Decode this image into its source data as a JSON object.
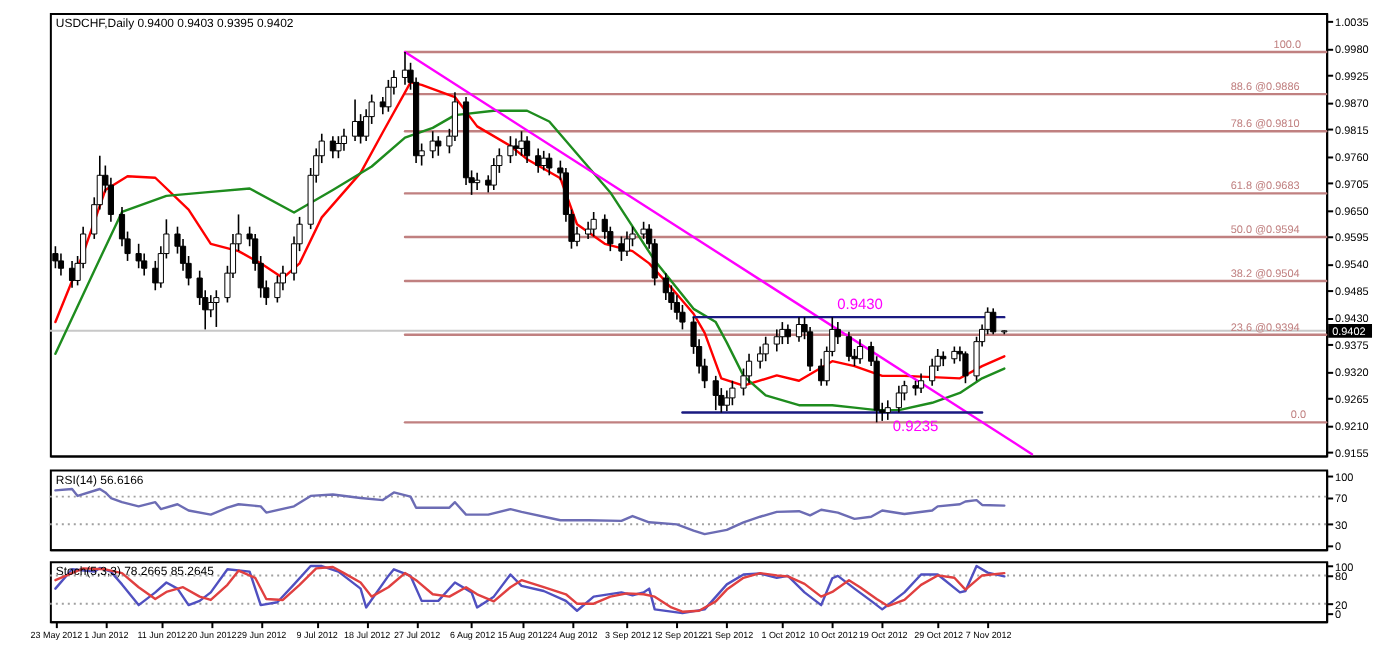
{
  "chart_data": [
    {
      "type": "candlestick",
      "title": "USDCHF,Daily 0.9400 0.9403 0.9395 0.9402",
      "x": [
        "2012-05-23",
        "2012-05-24",
        "2012-05-26",
        "2012-05-27",
        "2012-05-28",
        "2012-05-30",
        "2012-05-31",
        "2012-06-01",
        "2012-06-02",
        "2012-06-04",
        "2012-06-05",
        "2012-06-07",
        "2012-06-08",
        "2012-06-10",
        "2012-06-11",
        "2012-06-12",
        "2012-06-14",
        "2012-06-15",
        "2012-06-16",
        "2012-06-18",
        "2012-06-19",
        "2012-06-20",
        "2012-06-21",
        "2012-06-23",
        "2012-06-24",
        "2012-06-25",
        "2012-06-27",
        "2012-06-28",
        "2012-06-29",
        "2012-06-30",
        "2012-07-02",
        "2012-07-03",
        "2012-07-05",
        "2012-07-06",
        "2012-07-08",
        "2012-07-09",
        "2012-07-10",
        "2012-07-12",
        "2012-07-13",
        "2012-07-14",
        "2012-07-16",
        "2012-07-17",
        "2012-07-18",
        "2012-07-19",
        "2012-07-21",
        "2012-07-22",
        "2012-07-23",
        "2012-07-25",
        "2012-07-26",
        "2012-07-27",
        "2012-07-28",
        "2012-07-30",
        "2012-07-31",
        "2012-08-02",
        "2012-08-03",
        "2012-08-05",
        "2012-08-06",
        "2012-08-07",
        "2012-08-09",
        "2012-08-10",
        "2012-08-11",
        "2012-08-13",
        "2012-08-14",
        "2012-08-15",
        "2012-08-16",
        "2012-08-18",
        "2012-08-19",
        "2012-08-20",
        "2012-08-22",
        "2012-08-23",
        "2012-08-24",
        "2012-08-25",
        "2012-08-27",
        "2012-08-28",
        "2012-08-30",
        "2012-08-31",
        "2012-09-02",
        "2012-09-03",
        "2012-09-04",
        "2012-09-06",
        "2012-09-07",
        "2012-09-08",
        "2012-09-10",
        "2012-09-11",
        "2012-09-12",
        "2012-09-13",
        "2012-09-15",
        "2012-09-16",
        "2012-09-17",
        "2012-09-19",
        "2012-09-20",
        "2012-09-21",
        "2012-09-22",
        "2012-09-24",
        "2012-09-25",
        "2012-09-27",
        "2012-09-28",
        "2012-09-30",
        "2012-10-01",
        "2012-10-02",
        "2012-10-04",
        "2012-10-05",
        "2012-10-06",
        "2012-10-08",
        "2012-10-09",
        "2012-10-10",
        "2012-10-11",
        "2012-10-13",
        "2012-10-14",
        "2012-10-15",
        "2012-10-17",
        "2012-10-18",
        "2012-10-19",
        "2012-10-20",
        "2012-10-22",
        "2012-10-23",
        "2012-10-25",
        "2012-10-26",
        "2012-10-28",
        "2012-10-29",
        "2012-10-30",
        "2012-11-01",
        "2012-11-02",
        "2012-11-03",
        "2012-11-05",
        "2012-11-06",
        "2012-11-07",
        "2012-11-08",
        "2012-11-10"
      ],
      "ohlc": [
        [
          0.956,
          0.9575,
          0.953,
          0.9545
        ],
        [
          0.9545,
          0.956,
          0.9515,
          0.953
        ],
        [
          0.953,
          0.9545,
          0.949,
          0.9505
        ],
        [
          0.9505,
          0.9555,
          0.9495,
          0.954
        ],
        [
          0.954,
          0.9615,
          0.953,
          0.96
        ],
        [
          0.96,
          0.9675,
          0.959,
          0.966
        ],
        [
          0.966,
          0.976,
          0.965,
          0.972
        ],
        [
          0.972,
          0.974,
          0.9685,
          0.97
        ],
        [
          0.97,
          0.9715,
          0.9625,
          0.964
        ],
        [
          0.964,
          0.9655,
          0.9575,
          0.959
        ],
        [
          0.959,
          0.9605,
          0.9545,
          0.956
        ],
        [
          0.956,
          0.958,
          0.953,
          0.9545
        ],
        [
          0.9545,
          0.956,
          0.9515,
          0.953
        ],
        [
          0.953,
          0.9545,
          0.9485,
          0.95
        ],
        [
          0.95,
          0.9575,
          0.949,
          0.956
        ],
        [
          0.956,
          0.963,
          0.955,
          0.96
        ],
        [
          0.96,
          0.9615,
          0.956,
          0.9575
        ],
        [
          0.9575,
          0.959,
          0.9525,
          0.954
        ],
        [
          0.954,
          0.9555,
          0.9495,
          0.951
        ],
        [
          0.951,
          0.9525,
          0.9455,
          0.947
        ],
        [
          0.947,
          0.9485,
          0.9405,
          0.9445
        ],
        [
          0.9445,
          0.9475,
          0.943,
          0.946
        ],
        [
          0.946,
          0.9485,
          0.941,
          0.947
        ],
        [
          0.947,
          0.9535,
          0.946,
          0.952
        ],
        [
          0.952,
          0.96,
          0.951,
          0.958
        ],
        [
          0.958,
          0.964,
          0.9565,
          0.96
        ],
        [
          0.96,
          0.9615,
          0.9575,
          0.959
        ],
        [
          0.959,
          0.96,
          0.9525,
          0.954
        ],
        [
          0.954,
          0.9555,
          0.947,
          0.949
        ],
        [
          0.949,
          0.9505,
          0.9455,
          0.947
        ],
        [
          0.947,
          0.9515,
          0.946,
          0.95
        ],
        [
          0.95,
          0.9535,
          0.9485,
          0.952
        ],
        [
          0.952,
          0.9595,
          0.9505,
          0.958
        ],
        [
          0.958,
          0.9635,
          0.9565,
          0.962
        ],
        [
          0.962,
          0.9735,
          0.961,
          0.972
        ],
        [
          0.972,
          0.9775,
          0.9705,
          0.976
        ],
        [
          0.976,
          0.9805,
          0.9745,
          0.979
        ],
        [
          0.979,
          0.98,
          0.9755,
          0.977
        ],
        [
          0.977,
          0.98,
          0.9755,
          0.9785
        ],
        [
          0.9785,
          0.9815,
          0.977,
          0.98
        ],
        [
          0.98,
          0.9875,
          0.979,
          0.983
        ],
        [
          0.983,
          0.9845,
          0.9785,
          0.98
        ],
        [
          0.98,
          0.9855,
          0.979,
          0.984
        ],
        [
          0.984,
          0.9885,
          0.9825,
          0.987
        ],
        [
          0.987,
          0.988,
          0.9845,
          0.986
        ],
        [
          0.986,
          0.9915,
          0.985,
          0.99
        ],
        [
          0.99,
          0.9935,
          0.9885,
          0.992
        ],
        [
          0.992,
          0.9972,
          0.9905,
          0.9935
        ],
        [
          0.9935,
          0.995,
          0.9895,
          0.991
        ],
        [
          0.991,
          0.992,
          0.9745,
          0.976
        ],
        [
          0.976,
          0.9785,
          0.974,
          0.977
        ],
        [
          0.977,
          0.981,
          0.9755,
          0.979
        ],
        [
          0.979,
          0.98,
          0.976,
          0.978
        ],
        [
          0.978,
          0.9815,
          0.9765,
          0.98
        ],
        [
          0.98,
          0.989,
          0.979,
          0.987
        ],
        [
          0.987,
          0.988,
          0.97,
          0.9715
        ],
        [
          0.9715,
          0.973,
          0.968,
          0.9705
        ],
        [
          0.9705,
          0.9725,
          0.969,
          0.971
        ],
        [
          0.971,
          0.972,
          0.9685,
          0.97
        ],
        [
          0.97,
          0.9755,
          0.969,
          0.974
        ],
        [
          0.974,
          0.9775,
          0.9725,
          0.976
        ],
        [
          0.976,
          0.98,
          0.9745,
          0.978
        ],
        [
          0.978,
          0.9795,
          0.976,
          0.9775
        ],
        [
          0.9775,
          0.981,
          0.976,
          0.979
        ],
        [
          0.979,
          0.98,
          0.9745,
          0.976
        ],
        [
          0.976,
          0.9775,
          0.9725,
          0.974
        ],
        [
          0.974,
          0.977,
          0.973,
          0.9755
        ],
        [
          0.9755,
          0.9765,
          0.972,
          0.9735
        ],
        [
          0.9735,
          0.975,
          0.971,
          0.9725
        ],
        [
          0.9725,
          0.9735,
          0.9625,
          0.964
        ],
        [
          0.964,
          0.965,
          0.957,
          0.9585
        ],
        [
          0.9585,
          0.9615,
          0.9575,
          0.96
        ],
        [
          0.96,
          0.9625,
          0.959,
          0.961
        ],
        [
          0.961,
          0.9645,
          0.9595,
          0.963
        ],
        [
          0.963,
          0.964,
          0.959,
          0.9605
        ],
        [
          0.9605,
          0.9615,
          0.9565,
          0.958
        ],
        [
          0.958,
          0.9595,
          0.9545,
          0.9565
        ],
        [
          0.9565,
          0.9605,
          0.9555,
          0.959
        ],
        [
          0.959,
          0.9615,
          0.9575,
          0.96
        ],
        [
          0.96,
          0.9625,
          0.959,
          0.961
        ],
        [
          0.961,
          0.962,
          0.957,
          0.958
        ],
        [
          0.958,
          0.959,
          0.9495,
          0.951
        ],
        [
          0.951,
          0.952,
          0.9465,
          0.948
        ],
        [
          0.948,
          0.9495,
          0.9445,
          0.946
        ],
        [
          0.946,
          0.9475,
          0.9425,
          0.944
        ],
        [
          0.944,
          0.9455,
          0.9405,
          0.942
        ],
        [
          0.942,
          0.943,
          0.9355,
          0.937
        ],
        [
          0.937,
          0.9385,
          0.9315,
          0.933
        ],
        [
          0.933,
          0.9345,
          0.9285,
          0.93
        ],
        [
          0.93,
          0.931,
          0.924,
          0.927
        ],
        [
          0.927,
          0.9285,
          0.9235,
          0.925
        ],
        [
          0.925,
          0.928,
          0.9238,
          0.9265
        ],
        [
          0.9265,
          0.93,
          0.925,
          0.9285
        ],
        [
          0.9285,
          0.9325,
          0.927,
          0.931
        ],
        [
          0.931,
          0.9355,
          0.9295,
          0.934
        ],
        [
          0.934,
          0.937,
          0.9325,
          0.9355
        ],
        [
          0.9355,
          0.939,
          0.934,
          0.9375
        ],
        [
          0.9375,
          0.9405,
          0.936,
          0.939
        ],
        [
          0.939,
          0.942,
          0.9375,
          0.9405
        ],
        [
          0.9405,
          0.9415,
          0.9375,
          0.939
        ],
        [
          0.939,
          0.943,
          0.938,
          0.9415
        ],
        [
          0.9415,
          0.943,
          0.9385,
          0.94
        ],
        [
          0.94,
          0.941,
          0.932,
          0.933
        ],
        [
          0.933,
          0.9345,
          0.929,
          0.93
        ],
        [
          0.93,
          0.937,
          0.929,
          0.936
        ],
        [
          0.936,
          0.943,
          0.935,
          0.9405
        ],
        [
          0.9405,
          0.942,
          0.9375,
          0.939
        ],
        [
          0.939,
          0.94,
          0.934,
          0.935
        ],
        [
          0.935,
          0.9365,
          0.933,
          0.9345
        ],
        [
          0.9345,
          0.9385,
          0.9335,
          0.937
        ],
        [
          0.937,
          0.938,
          0.933,
          0.934
        ],
        [
          0.934,
          0.935,
          0.9215,
          0.924
        ],
        [
          0.924,
          0.9255,
          0.9218,
          0.9235
        ],
        [
          0.9235,
          0.926,
          0.922,
          0.9245
        ],
        [
          0.9245,
          0.929,
          0.9235,
          0.9275
        ],
        [
          0.9275,
          0.93,
          0.926,
          0.929
        ],
        [
          0.929,
          0.93,
          0.927,
          0.9285
        ],
        [
          0.9285,
          0.9315,
          0.9275,
          0.93
        ],
        [
          0.93,
          0.9345,
          0.929,
          0.933
        ],
        [
          0.933,
          0.9365,
          0.932,
          0.935
        ],
        [
          0.935,
          0.936,
          0.933,
          0.9345
        ],
        [
          0.9345,
          0.937,
          0.9335,
          0.936
        ],
        [
          0.936,
          0.937,
          0.934,
          0.9355
        ],
        [
          0.9355,
          0.936,
          0.9295,
          0.931
        ],
        [
          0.931,
          0.939,
          0.93,
          0.938
        ],
        [
          0.938,
          0.9415,
          0.937,
          0.9405
        ],
        [
          0.9405,
          0.945,
          0.9395,
          0.944
        ],
        [
          0.944,
          0.9448,
          0.9395,
          0.94
        ],
        [
          0.94,
          0.9403,
          0.9395,
          0.9402
        ]
      ],
      "series": [
        {
          "type": "line",
          "color": "#c08080",
          "x": [
            "2012-07-25",
            "2013-01-07"
          ],
          "values": [
            0.9972,
            0.9972
          ]
        },
        {
          "type": "line",
          "color": "#c08080",
          "x": [
            "2012-07-25",
            "2013-01-07"
          ],
          "values": [
            0.9886,
            0.9886
          ]
        },
        {
          "type": "line",
          "color": "#c08080",
          "x": [
            "2012-07-25",
            "2013-01-07"
          ],
          "values": [
            0.981,
            0.981
          ]
        },
        {
          "type": "line",
          "color": "#c08080",
          "x": [
            "2012-07-25",
            "2013-01-07"
          ],
          "values": [
            0.9683,
            0.9683
          ]
        },
        {
          "type": "line",
          "color": "#c08080",
          "x": [
            "2012-07-25",
            "2013-01-07"
          ],
          "values": [
            0.9594,
            0.9594
          ]
        },
        {
          "type": "line",
          "color": "#c08080",
          "x": [
            "2012-07-25",
            "2013-01-07"
          ],
          "values": [
            0.9504,
            0.9504
          ]
        },
        {
          "type": "line",
          "color": "#c08080",
          "x": [
            "2012-07-25",
            "2013-01-07"
          ],
          "values": [
            0.9394,
            0.9394
          ]
        },
        {
          "type": "line",
          "color": "#c08080",
          "x": [
            "2012-07-25",
            "2013-01-07"
          ],
          "values": [
            0.9215,
            0.9215
          ]
        },
        {
          "type": "line",
          "color": "#ff0000",
          "x": [
            "2012-05-23",
            "2012-05-28",
            "2012-06-01",
            "2012-06-05",
            "2012-06-10",
            "2012-06-16",
            "2012-06-20",
            "2012-06-25",
            "2012-06-29",
            "2012-07-03",
            "2012-07-06",
            "2012-07-10",
            "2012-07-17",
            "2012-07-21",
            "2012-07-26",
            "2012-07-28",
            "2012-08-03",
            "2012-08-07",
            "2012-08-13",
            "2012-08-16",
            "2012-08-22",
            "2012-08-25",
            "2012-08-30",
            "2012-09-04",
            "2012-09-07",
            "2012-09-11",
            "2012-09-15",
            "2012-09-17",
            "2012-09-20",
            "2012-09-24",
            "2012-09-30",
            "2012-10-04",
            "2012-10-10",
            "2012-10-14",
            "2012-10-19",
            "2012-10-23",
            "2012-10-29",
            "2012-11-02",
            "2012-11-06",
            "2012-11-10"
          ],
          "values": [
            0.942,
            0.956,
            0.969,
            0.9718,
            0.9715,
            0.965,
            0.958,
            0.9565,
            0.954,
            0.951,
            0.954,
            0.9634,
            0.9725,
            0.9808,
            0.991,
            0.9905,
            0.988,
            0.982,
            0.978,
            0.9753,
            0.9714,
            0.962,
            0.958,
            0.9565,
            0.954,
            0.949,
            0.9437,
            0.9398,
            0.9305,
            0.929,
            0.9311,
            0.93,
            0.934,
            0.933,
            0.931,
            0.931,
            0.9307,
            0.9305,
            0.933,
            0.935
          ]
        },
        {
          "type": "line",
          "color": "#1e8c1e",
          "x": [
            "2012-05-23",
            "2012-05-30",
            "2012-06-04",
            "2012-06-12",
            "2012-06-19",
            "2012-06-27",
            "2012-07-05",
            "2012-07-12",
            "2012-07-19",
            "2012-07-25",
            "2012-07-30",
            "2012-08-03",
            "2012-08-10",
            "2012-08-16",
            "2012-08-20",
            "2012-08-31",
            "2012-09-08",
            "2012-09-15",
            "2012-09-19",
            "2012-09-21",
            "2012-09-24",
            "2012-09-28",
            "2012-10-04",
            "2012-10-10",
            "2012-10-14",
            "2012-10-18",
            "2012-10-22",
            "2012-10-28",
            "2012-11-02",
            "2012-11-06",
            "2012-11-10"
          ],
          "values": [
            0.9355,
            0.9525,
            0.9645,
            0.9678,
            0.9685,
            0.9693,
            0.9644,
            0.969,
            0.9738,
            0.9797,
            0.9817,
            0.9843,
            0.9852,
            0.9852,
            0.983,
            0.9685,
            0.9546,
            0.9447,
            0.942,
            0.9378,
            0.931,
            0.927,
            0.925,
            0.925,
            0.9245,
            0.924,
            0.924,
            0.9255,
            0.9275,
            0.9305,
            0.9325
          ]
        },
        {
          "type": "line",
          "color": "#ff00ff",
          "x": [
            "2012-07-25",
            "2012-11-15"
          ],
          "values": [
            0.9972,
            0.915
          ]
        },
        {
          "type": "line",
          "color": "#1a1a80",
          "x": [
            "2012-09-15",
            "2012-11-10"
          ],
          "values": [
            0.943,
            0.943
          ]
        },
        {
          "type": "line",
          "color": "#1a1a80",
          "x": [
            "2012-09-13",
            "2012-11-06"
          ],
          "values": [
            0.9235,
            0.9235
          ]
        }
      ],
      "ref_lines": [
        {
          "axis": "y",
          "value": 0.9402,
          "label": "0.9402",
          "color": "#c8c8c8"
        }
      ],
      "annotations": [
        {
          "text": "100.0",
          "x": "2012-12-31",
          "y": 0.9972
        },
        {
          "text": "88.6 @0.9886",
          "x": "2012-12-27",
          "y": 0.9886
        },
        {
          "text": "78.6 @0.9810",
          "x": "2012-12-27",
          "y": 0.981
        },
        {
          "text": "61.8 @0.9683",
          "x": "2012-12-27",
          "y": 0.9683
        },
        {
          "text": "50.0 @0.9594",
          "x": "2012-12-27",
          "y": 0.9594
        },
        {
          "text": "38.2 @0.9504",
          "x": "2012-12-27",
          "y": 0.9504
        },
        {
          "text": "23.6 @0.9394",
          "x": "2012-12-27",
          "y": 0.9394
        },
        {
          "text": "0.0",
          "x": "2013-01-02",
          "y": 0.9215
        },
        {
          "text": "0.9430",
          "x": "2012-10-15",
          "y": 0.943
        },
        {
          "text": "0.9235",
          "x": "2012-10-25",
          "y": 0.9235
        }
      ],
      "xlim": [
        "2012-05-22",
        "2013-01-07"
      ],
      "ylim": [
        0.9147,
        1.0052
      ],
      "yticks": [
        0.9155,
        {
          "value": 0.921,
          "label": "0.9210"
        },
        0.9265,
        {
          "value": 0.932,
          "label": "0.9320"
        },
        0.9375,
        {
          "value": 0.943,
          "label": "0.9430"
        },
        0.9485,
        {
          "value": 0.954,
          "label": "0.9540"
        },
        0.9595,
        {
          "value": 0.965,
          "label": "0.9650"
        },
        0.9705,
        {
          "value": 0.976,
          "label": "0.9760"
        },
        0.9815,
        {
          "value": 0.987,
          "label": "0.9870"
        },
        0.9925,
        {
          "value": 0.998,
          "label": "0.9980"
        },
        1.0035
      ],
      "tick_labels": "y"
    },
    {
      "type": "line",
      "title": "RSI(14) 56.6166",
      "series": [
        {
          "color": "#6c6cb4",
          "x": [
            "2012-05-23",
            "2012-05-26",
            "2012-05-27",
            "2012-05-31",
            "2012-06-01",
            "2012-06-02",
            "2012-06-04",
            "2012-06-07",
            "2012-06-10",
            "2012-06-11",
            "2012-06-14",
            "2012-06-16",
            "2012-06-20",
            "2012-06-23",
            "2012-06-25",
            "2012-06-29",
            "2012-06-30",
            "2012-07-05",
            "2012-07-08",
            "2012-07-12",
            "2012-07-17",
            "2012-07-21",
            "2012-07-23",
            "2012-07-26",
            "2012-07-27",
            "2012-08-02",
            "2012-08-03",
            "2012-08-05",
            "2012-08-09",
            "2012-08-13",
            "2012-08-15",
            "2012-08-22",
            "2012-08-27",
            "2012-09-02",
            "2012-09-04",
            "2012-09-07",
            "2012-09-12",
            "2012-09-15",
            "2012-09-17",
            "2012-09-21",
            "2012-09-24",
            "2012-09-27",
            "2012-09-30",
            "2012-10-04",
            "2012-10-06",
            "2012-10-08",
            "2012-10-11",
            "2012-10-14",
            "2012-10-17",
            "2012-10-19",
            "2012-10-23",
            "2012-10-28",
            "2012-10-29",
            "2012-11-02",
            "2012-11-03",
            "2012-11-05",
            "2012-11-06",
            "2012-11-10"
          ],
          "values": [
            79,
            81,
            71,
            81,
            76,
            68,
            62,
            56,
            62,
            52,
            59,
            50,
            44,
            54,
            59,
            56,
            47,
            56,
            71,
            73,
            68,
            65,
            76,
            70,
            54,
            54,
            62,
            44,
            44,
            52,
            48,
            36,
            36,
            35,
            42,
            33,
            30,
            21,
            16,
            22,
            33,
            41,
            48,
            49,
            43,
            51,
            47,
            38,
            41,
            50,
            45,
            50,
            56,
            59,
            63,
            65,
            58,
            57
          ]
        }
      ],
      "ref_lines": [
        {
          "axis": "y",
          "value": 70,
          "color": "#a0a0a0",
          "line_style": "dotted"
        },
        {
          "axis": "y",
          "value": 30,
          "color": "#a0a0a0",
          "line_style": "dotted"
        }
      ],
      "xlim": [
        "2012-05-22",
        "2013-01-07"
      ],
      "ylim": [
        -6,
        109
      ],
      "yticks": [
        0,
        30,
        70,
        100
      ],
      "tick_labels": "y"
    },
    {
      "type": "line",
      "title": "Stoch(5,3,3) 78.2665 85.2645",
      "series": [
        {
          "color": "#5050c0",
          "x": [
            "2012-05-23",
            "2012-05-26",
            "2012-05-30",
            "2012-05-31",
            "2012-06-02",
            "2012-06-04",
            "2012-06-07",
            "2012-06-10",
            "2012-06-12",
            "2012-06-14",
            "2012-06-16",
            "2012-06-18",
            "2012-06-20",
            "2012-06-23",
            "2012-06-27",
            "2012-06-29",
            "2012-07-02",
            "2012-07-05",
            "2012-07-08",
            "2012-07-10",
            "2012-07-13",
            "2012-07-17",
            "2012-07-18",
            "2012-07-22",
            "2012-07-23",
            "2012-07-26",
            "2012-07-28",
            "2012-07-31",
            "2012-08-03",
            "2012-08-06",
            "2012-08-07",
            "2012-08-10",
            "2012-08-13",
            "2012-08-15",
            "2012-08-19",
            "2012-08-23",
            "2012-08-25",
            "2012-08-28",
            "2012-09-02",
            "2012-09-04",
            "2012-09-06",
            "2012-09-07",
            "2012-09-08",
            "2012-09-13",
            "2012-09-17",
            "2012-09-21",
            "2012-09-24",
            "2012-09-27",
            "2012-09-30",
            "2012-10-02",
            "2012-10-05",
            "2012-10-08",
            "2012-10-10",
            "2012-10-11",
            "2012-10-14",
            "2012-10-17",
            "2012-10-19",
            "2012-10-23",
            "2012-10-26",
            "2012-10-29",
            "2012-11-02",
            "2012-11-03",
            "2012-11-05",
            "2012-11-07",
            "2012-11-10"
          ],
          "values": [
            52,
            93,
            88,
            96,
            88,
            61,
            17,
            44,
            65,
            52,
            17,
            26,
            44,
            93,
            88,
            17,
            23,
            61,
            100,
            100,
            88,
            52,
            12,
            79,
            93,
            79,
            26,
            26,
            65,
            44,
            12,
            35,
            82,
            58,
            47,
            26,
            5,
            35,
            44,
            38,
            44,
            52,
            8,
            0,
            8,
            61,
            82,
            84,
            75,
            79,
            44,
            17,
            74,
            79,
            52,
            26,
            8,
            44,
            82,
            82,
            44,
            47,
            100,
            86,
            78
          ]
        },
        {
          "color": "#e04040",
          "x": [
            "2012-05-23",
            "2012-05-26",
            "2012-05-28",
            "2012-06-01",
            "2012-06-04",
            "2012-06-07",
            "2012-06-10",
            "2012-06-12",
            "2012-06-15",
            "2012-06-18",
            "2012-06-20",
            "2012-06-23",
            "2012-06-25",
            "2012-06-28",
            "2012-06-30",
            "2012-07-03",
            "2012-07-06",
            "2012-07-09",
            "2012-07-12",
            "2012-07-14",
            "2012-07-17",
            "2012-07-19",
            "2012-07-22",
            "2012-07-25",
            "2012-07-27",
            "2012-07-30",
            "2012-08-02",
            "2012-08-05",
            "2012-08-07",
            "2012-08-10",
            "2012-08-13",
            "2012-08-15",
            "2012-08-19",
            "2012-08-23",
            "2012-08-25",
            "2012-08-28",
            "2012-08-31",
            "2012-09-03",
            "2012-09-06",
            "2012-09-08",
            "2012-09-11",
            "2012-09-13",
            "2012-09-16",
            "2012-09-19",
            "2012-09-21",
            "2012-09-24",
            "2012-09-27",
            "2012-09-30",
            "2012-10-02",
            "2012-10-05",
            "2012-10-08",
            "2012-10-10",
            "2012-10-13",
            "2012-10-15",
            "2012-10-18",
            "2012-10-20",
            "2012-10-23",
            "2012-10-26",
            "2012-10-29",
            "2012-11-01",
            "2012-11-03",
            "2012-11-06",
            "2012-11-10"
          ],
          "values": [
            70,
            85,
            95,
            93,
            85,
            55,
            30,
            45,
            55,
            35,
            28,
            60,
            90,
            75,
            30,
            28,
            60,
            95,
            98,
            85,
            65,
            35,
            55,
            85,
            70,
            40,
            35,
            55,
            40,
            25,
            55,
            70,
            55,
            40,
            20,
            20,
            35,
            42,
            40,
            35,
            12,
            3,
            5,
            25,
            50,
            75,
            85,
            80,
            78,
            62,
            35,
            45,
            70,
            55,
            30,
            15,
            28,
            60,
            80,
            75,
            50,
            80,
            85
          ]
        }
      ],
      "ref_lines": [
        {
          "axis": "y",
          "value": 80,
          "color": "#a0a0a0",
          "line_style": "dotted"
        },
        {
          "axis": "y",
          "value": 20,
          "color": "#a0a0a0",
          "line_style": "dotted"
        }
      ],
      "xlim": [
        "2012-05-22",
        "2013-01-07"
      ],
      "ylim": [
        -17,
        110
      ],
      "xticks": [
        {
          "value": "2012-05-23",
          "label": "23 May 2012"
        },
        {
          "value": "2012-06-01",
          "label": "1 Jun 2012"
        },
        {
          "value": "2012-06-11",
          "label": "11 Jun 2012"
        },
        {
          "value": "2012-06-20",
          "label": "20 Jun 2012"
        },
        {
          "value": "2012-06-29",
          "label": "29 Jun 2012"
        },
        {
          "value": "2012-07-09",
          "label": "9 Jul 2012"
        },
        {
          "value": "2012-07-18",
          "label": "18 Jul 2012"
        },
        {
          "value": "2012-07-27",
          "label": "27 Jul 2012"
        },
        {
          "value": "2012-08-06",
          "label": "6 Aug 2012"
        },
        {
          "value": "2012-08-15",
          "label": "15 Aug 2012"
        },
        {
          "value": "2012-08-24",
          "label": "24 Aug 2012"
        },
        {
          "value": "2012-09-03",
          "label": "3 Sep 2012"
        },
        {
          "value": "2012-09-12",
          "label": "12 Sep 2012"
        },
        {
          "value": "2012-09-21",
          "label": "21 Sep 2012"
        },
        {
          "value": "2012-10-01",
          "label": "1 Oct 2012"
        },
        {
          "value": "2012-10-10",
          "label": "10 Oct 2012"
        },
        {
          "value": "2012-10-19",
          "label": "19 Oct 2012"
        },
        {
          "value": "2012-10-29",
          "label": "29 Oct 2012"
        },
        {
          "value": "2012-11-07",
          "label": "7 Nov 2012"
        }
      ],
      "yticks": [
        0,
        20,
        80,
        100
      ]
    }
  ]
}
